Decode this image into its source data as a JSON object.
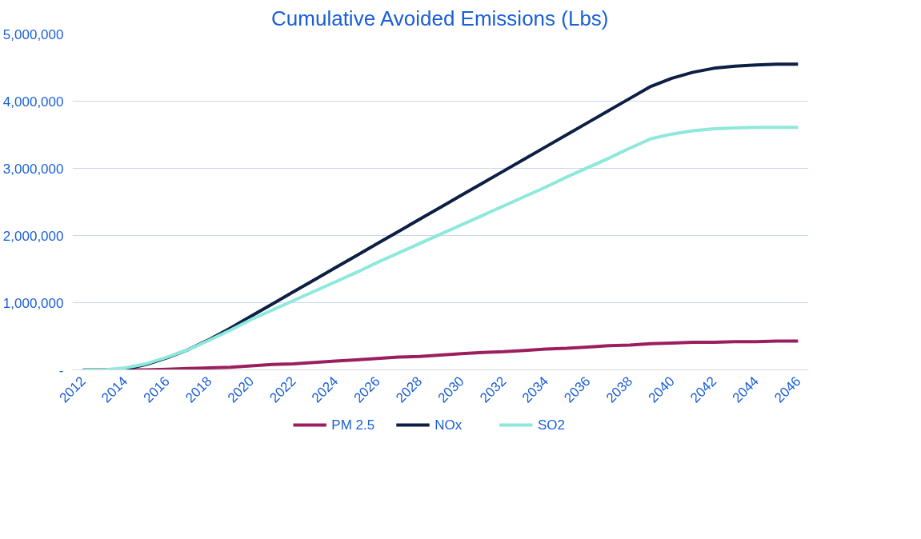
{
  "chart_data": {
    "type": "line",
    "title": "Cumulative Avoided Emissions (Lbs)",
    "x": [
      2012,
      2013,
      2014,
      2015,
      2016,
      2017,
      2018,
      2019,
      2020,
      2021,
      2022,
      2023,
      2024,
      2025,
      2026,
      2027,
      2028,
      2029,
      2030,
      2031,
      2032,
      2033,
      2034,
      2035,
      2036,
      2037,
      2038,
      2039,
      2040,
      2041,
      2042,
      2043,
      2044,
      2045,
      2046
    ],
    "series": [
      {
        "name": "PM 2.5",
        "color": "#9b1f5e",
        "x": [
          2014,
          2015,
          2016,
          2017,
          2018,
          2019,
          2020,
          2021,
          2022,
          2023,
          2024,
          2025,
          2026,
          2027,
          2028,
          2029,
          2030,
          2031,
          2032,
          2033,
          2034,
          2035,
          2036,
          2037,
          2038,
          2039,
          2040,
          2041,
          2042,
          2043,
          2044,
          2045,
          2046
        ],
        "values": [
          0,
          0,
          10000,
          20000,
          30000,
          40000,
          60000,
          80000,
          90000,
          110000,
          130000,
          150000,
          170000,
          190000,
          200000,
          220000,
          240000,
          260000,
          270000,
          290000,
          310000,
          320000,
          340000,
          360000,
          370000,
          390000,
          400000,
          410000,
          410000,
          420000,
          420000,
          430000,
          430000
        ]
      },
      {
        "name": "NOx",
        "color": "#0d1f45",
        "values": [
          0,
          0,
          10000,
          80000,
          180000,
          300000,
          450000,
          620000,
          800000,
          980000,
          1160000,
          1340000,
          1520000,
          1700000,
          1880000,
          2060000,
          2240000,
          2420000,
          2600000,
          2780000,
          2960000,
          3140000,
          3320000,
          3500000,
          3680000,
          3860000,
          4040000,
          4220000,
          4340000,
          4430000,
          4490000,
          4520000,
          4540000,
          4550000,
          4550000
        ]
      },
      {
        "name": "SO2",
        "color": "#8ee8dc",
        "values": [
          0,
          0,
          30000,
          90000,
          190000,
          300000,
          440000,
          590000,
          750000,
          890000,
          1030000,
          1170000,
          1310000,
          1450000,
          1600000,
          1740000,
          1880000,
          2020000,
          2160000,
          2300000,
          2440000,
          2580000,
          2720000,
          2870000,
          3010000,
          3150000,
          3300000,
          3440000,
          3510000,
          3560000,
          3590000,
          3600000,
          3610000,
          3610000,
          3610000
        ]
      }
    ],
    "xlim": [
      2011.5,
      2046.5
    ],
    "xticks": [
      2012,
      2014,
      2016,
      2018,
      2020,
      2022,
      2024,
      2026,
      2028,
      2030,
      2032,
      2034,
      2036,
      2038,
      2040,
      2042,
      2044,
      2046
    ],
    "ylim": [
      0,
      5000000
    ],
    "yticks": [
      {
        "value": 0,
        "label": "-"
      },
      {
        "value": 1000000,
        "label": "1,000,000"
      },
      {
        "value": 2000000,
        "label": "2,000,000"
      },
      {
        "value": 3000000,
        "label": "3,000,000"
      },
      {
        "value": 4000000,
        "label": "4,000,000"
      },
      {
        "value": 5000000,
        "label": "5,000,000"
      }
    ],
    "grid": "y",
    "legend": "bottom",
    "marker": "none",
    "line_style": "solid"
  }
}
